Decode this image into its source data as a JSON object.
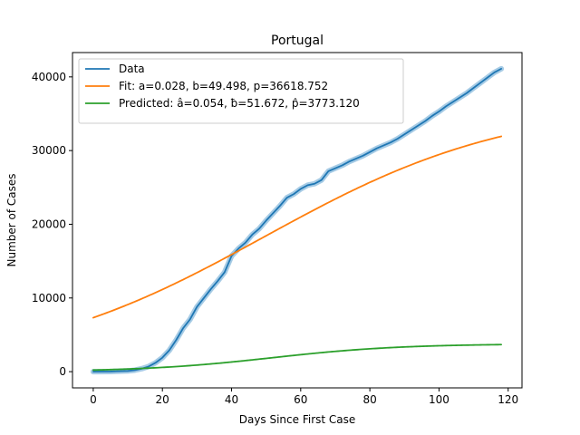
{
  "chart_data": {
    "type": "line",
    "title": "Portugal",
    "xlabel": "Days Since First Case",
    "ylabel": "Number of Cases",
    "xlim": [
      -6,
      124
    ],
    "ylim": [
      -2200,
      43300
    ],
    "xticks": [
      0,
      20,
      40,
      60,
      80,
      100,
      120
    ],
    "yticks": [
      0,
      10000,
      20000,
      30000,
      40000
    ],
    "grid": false,
    "legend_position": "top-left",
    "series": [
      {
        "name": "Data",
        "color": "#1f77b4",
        "band_color": "#a6cbe5",
        "x": [
          0,
          5,
          10,
          12,
          14,
          16,
          18,
          20,
          22,
          24,
          26,
          28,
          30,
          32,
          34,
          36,
          38,
          40,
          42,
          44,
          46,
          48,
          50,
          52,
          54,
          56,
          58,
          60,
          62,
          64,
          66,
          68,
          70,
          72,
          74,
          76,
          78,
          80,
          82,
          84,
          86,
          88,
          90,
          92,
          94,
          96,
          98,
          100,
          102,
          104,
          106,
          108,
          110,
          112,
          114,
          116,
          118
        ],
        "y": [
          0,
          20,
          100,
          200,
          400,
          700,
          1200,
          1900,
          2900,
          4300,
          5900,
          7100,
          8800,
          10000,
          11200,
          12300,
          13500,
          15700,
          16700,
          17500,
          18600,
          19400,
          20500,
          21500,
          22500,
          23600,
          24100,
          24800,
          25300,
          25500,
          26000,
          27200,
          27600,
          28000,
          28500,
          28900,
          29300,
          29800,
          30300,
          30700,
          31100,
          31600,
          32200,
          32800,
          33400,
          34000,
          34700,
          35300,
          36000,
          36600,
          37200,
          37800,
          38500,
          39200,
          39900,
          40600,
          41100
        ]
      },
      {
        "name": "Fit: a=0.028, b=49.498, p=36618.752",
        "color": "#ff7f0e",
        "model": "logistic",
        "a": 0.028,
        "b": 49.498,
        "p": 36618.752,
        "x_range": [
          0,
          118
        ]
      },
      {
        "name": "Predicted: â=0.054, ƀ=51.672, p̂=3773.120",
        "color": "#2ca02c",
        "model": "logistic",
        "a": 0.054,
        "b": 51.672,
        "p": 3773.12,
        "x_range": [
          0,
          118
        ]
      }
    ]
  }
}
